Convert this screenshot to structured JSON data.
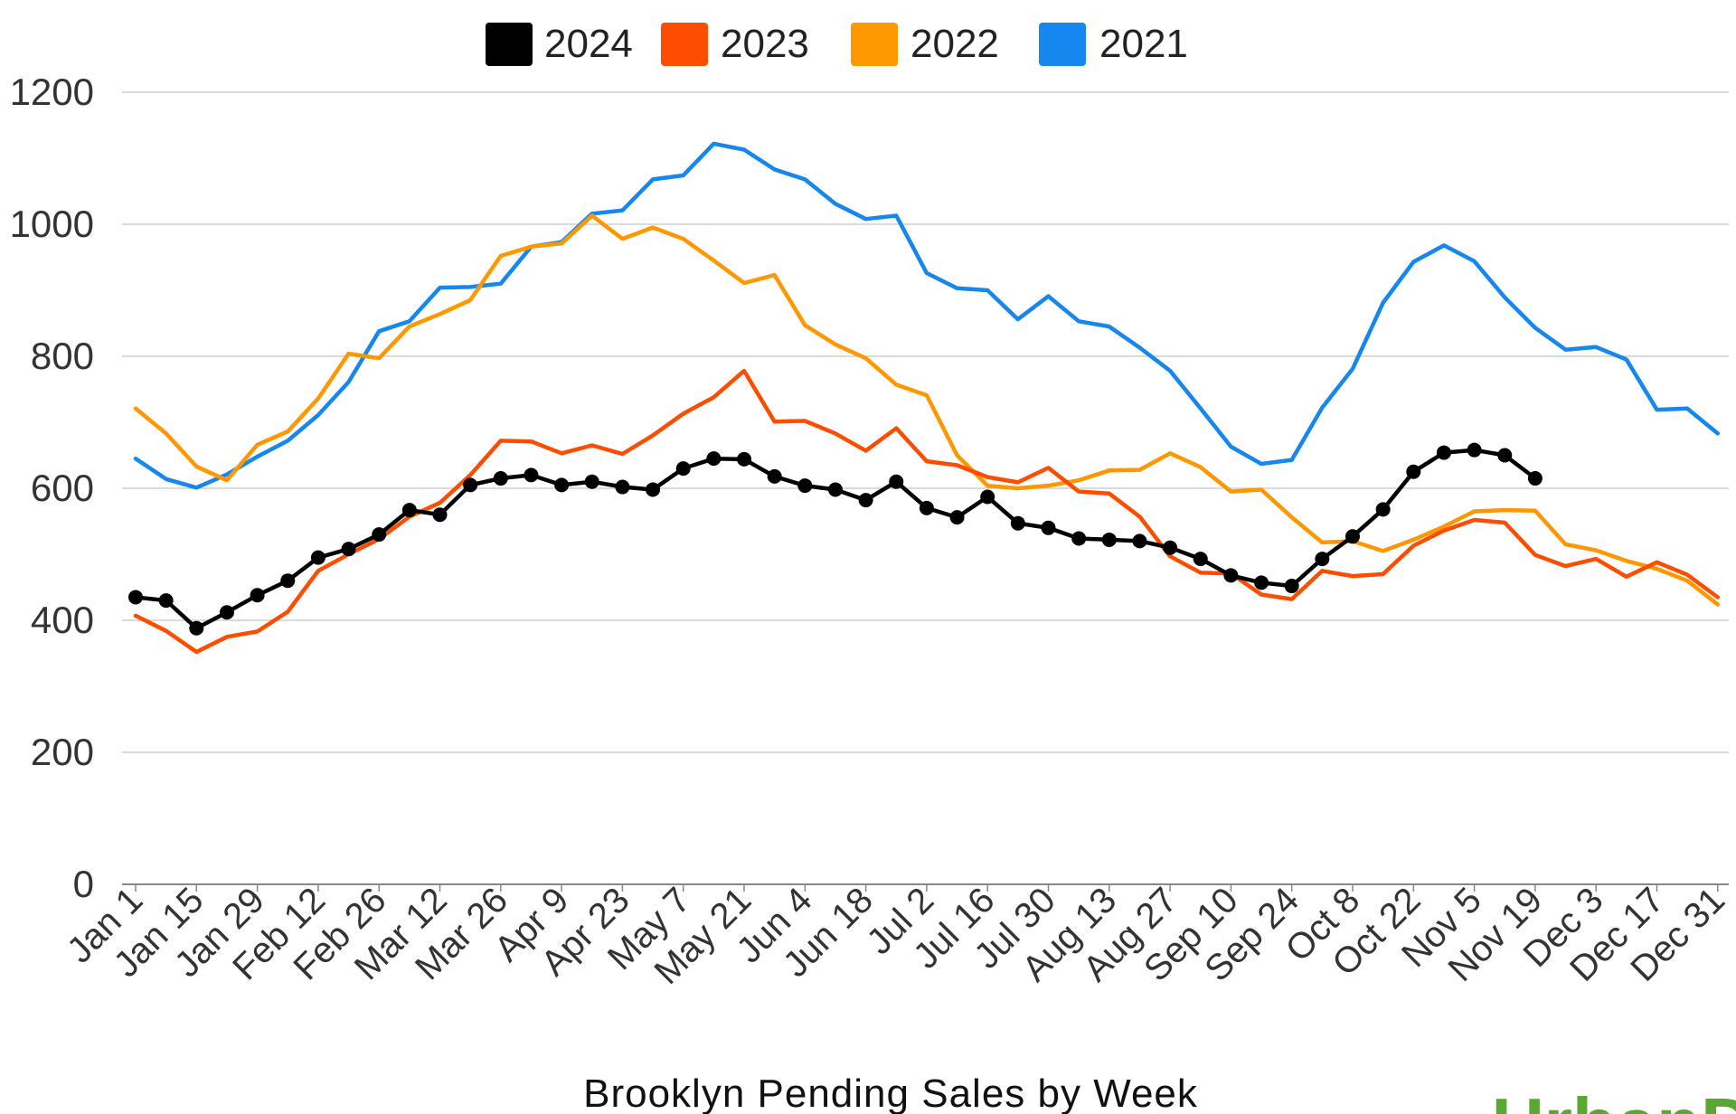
{
  "chart_data": {
    "type": "line",
    "title": "Brooklyn Pending Sales by Week",
    "xlabel": "",
    "ylabel": "",
    "ylim": [
      0,
      1200
    ],
    "yticks": [
      0,
      200,
      400,
      600,
      800,
      1000,
      1200
    ],
    "x_tick_labels": [
      "Jan 1",
      "Jan 15",
      "Jan 29",
      "Feb 12",
      "Feb 26",
      "Mar 12",
      "Mar 26",
      "Apr 9",
      "Apr 23",
      "May 7",
      "May 21",
      "Jun 4",
      "Jun 18",
      "Jul 2",
      "Jul 16",
      "Jul 30",
      "Aug 13",
      "Aug 27",
      "Sep 10",
      "Sep 24",
      "Oct 8",
      "Oct 22",
      "Nov 5",
      "Nov 19",
      "Dec 3",
      "Dec 17",
      "Dec 31"
    ],
    "week_count": 53,
    "grid": true,
    "legend_position": "top",
    "series": [
      {
        "name": "2024",
        "color": "#000000",
        "markers": true,
        "values": [
          435,
          430,
          388,
          412,
          438,
          460,
          495,
          508,
          530,
          567,
          560,
          605,
          615,
          620,
          605,
          610,
          602,
          598,
          630,
          645,
          644,
          618,
          604,
          598,
          582,
          610,
          570,
          556,
          587,
          547,
          540,
          524,
          522,
          520,
          510,
          493,
          468,
          457,
          452,
          493,
          527,
          568,
          625,
          654,
          658,
          650,
          615
        ]
      },
      {
        "name": "2023",
        "color": "#ff4d00",
        "markers": false,
        "values": [
          407,
          384,
          352,
          375,
          383,
          413,
          475,
          500,
          523,
          557,
          578,
          620,
          672,
          671,
          653,
          665,
          652,
          680,
          713,
          738,
          778,
          701,
          702,
          683,
          657,
          691,
          641,
          635,
          617,
          609,
          631,
          595,
          592,
          557,
          497,
          472,
          471,
          439,
          432,
          475,
          467,
          470,
          513,
          536,
          552,
          548,
          499,
          482,
          493,
          466,
          488,
          469,
          435
        ]
      },
      {
        "name": "2022",
        "color": "#ff9700",
        "markers": false,
        "values": [
          721,
          683,
          633,
          612,
          666,
          686,
          736,
          804,
          797,
          845,
          864,
          885,
          952,
          966,
          971,
          1013,
          978,
          995,
          978,
          945,
          911,
          923,
          847,
          818,
          797,
          757,
          741,
          650,
          604,
          600,
          604,
          612,
          627,
          628,
          653,
          632,
          595,
          598,
          556,
          518,
          520,
          505,
          522,
          542,
          565,
          567,
          566,
          515,
          506,
          490,
          478,
          460,
          424
        ]
      },
      {
        "name": "2021",
        "color": "#1587ee",
        "markers": false,
        "values": [
          645,
          614,
          601,
          621,
          648,
          672,
          711,
          761,
          838,
          853,
          904,
          905,
          910,
          966,
          973,
          1016,
          1021,
          1068,
          1074,
          1122,
          1113,
          1083,
          1068,
          1031,
          1008,
          1013,
          926,
          903,
          900,
          856,
          891,
          853,
          845,
          813,
          778,
          721,
          663,
          637,
          643,
          722,
          781,
          881,
          943,
          968,
          944,
          889,
          843,
          810,
          814,
          795,
          719,
          721,
          683
        ]
      }
    ]
  },
  "watermark": "UrbanDigs"
}
